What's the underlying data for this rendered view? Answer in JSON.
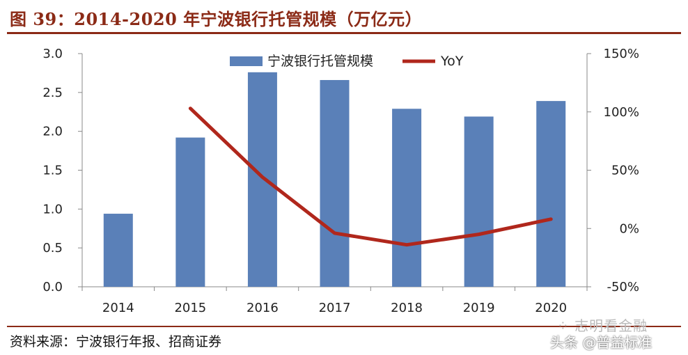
{
  "title": "图 39：2014-2020 年宁波银行托管规模（万亿元）",
  "source": "资料来源：宁波银行年报、招商证券",
  "watermark": {
    "line1": "⁘ 志明看金融",
    "line2": "头条 @普益标准"
  },
  "colors": {
    "bar": "#5a80b8",
    "line": "#b0271c",
    "accent": "#8b2a16"
  },
  "chart_data": {
    "type": "bar",
    "categories": [
      "2014",
      "2015",
      "2016",
      "2017",
      "2018",
      "2019",
      "2020"
    ],
    "series": [
      {
        "name": "宁波银行托管规模",
        "type": "bar",
        "axis": "left",
        "values": [
          0.94,
          1.92,
          2.76,
          2.66,
          2.29,
          2.19,
          2.39
        ]
      },
      {
        "name": "YoY",
        "type": "line",
        "axis": "right",
        "values": [
          null,
          103,
          44,
          -4,
          -14,
          -5,
          8
        ]
      }
    ],
    "y_left": {
      "ylim": [
        0,
        3.0
      ],
      "ticks": [
        "0.0",
        "0.5",
        "1.0",
        "1.5",
        "2.0",
        "2.5",
        "3.0"
      ]
    },
    "y_right": {
      "ylim": [
        -50,
        150
      ],
      "ticks": [
        "-50%",
        "0%",
        "50%",
        "100%",
        "150%"
      ]
    },
    "legend_position": "top-center",
    "grid": false
  }
}
